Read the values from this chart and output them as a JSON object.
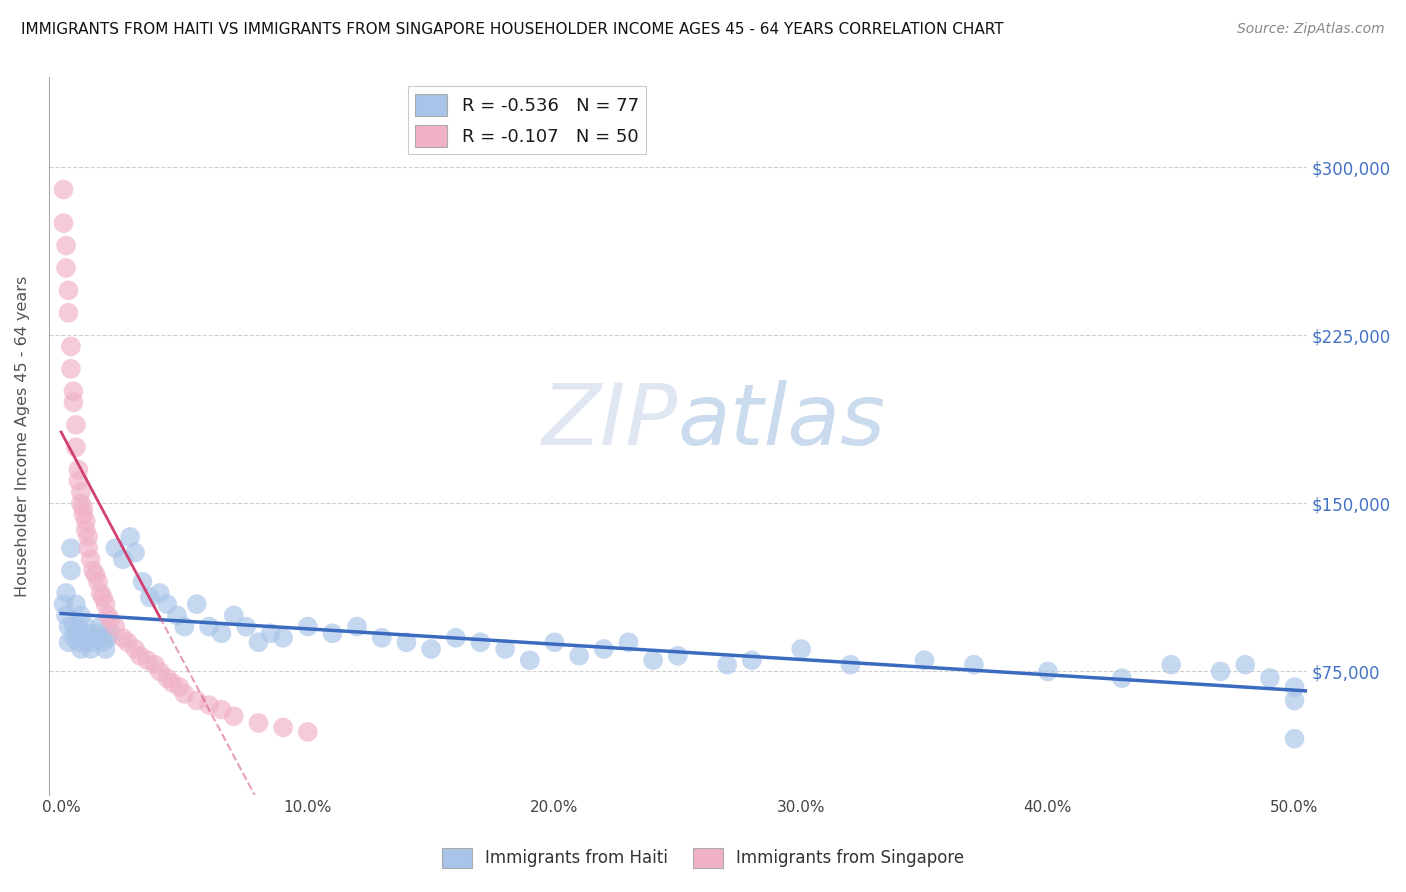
{
  "title": "IMMIGRANTS FROM HAITI VS IMMIGRANTS FROM SINGAPORE HOUSEHOLDER INCOME AGES 45 - 64 YEARS CORRELATION CHART",
  "source": "Source: ZipAtlas.com",
  "ylabel": "Householder Income Ages 45 - 64 years",
  "xlabel_ticks": [
    "0.0%",
    "10.0%",
    "20.0%",
    "30.0%",
    "40.0%",
    "50.0%"
  ],
  "ytick_labels": [
    "$75,000",
    "$150,000",
    "$225,000",
    "$300,000"
  ],
  "ytick_values": [
    75000,
    150000,
    225000,
    300000
  ],
  "xlim": [
    -0.005,
    0.505
  ],
  "ylim": [
    20000,
    340000
  ],
  "haiti_color": "#a8c4e8",
  "singapore_color": "#f0b0c8",
  "haiti_line_color": "#3b6bbf",
  "singapore_line_color": "#d04070",
  "watermark_zip": "ZIP",
  "watermark_atlas": "atlas",
  "legend_haiti_label": "R = -0.536   N = 77",
  "legend_singapore_label": "R = -0.107   N = 50",
  "haiti_x": [
    0.001,
    0.002,
    0.002,
    0.003,
    0.003,
    0.004,
    0.004,
    0.005,
    0.005,
    0.006,
    0.006,
    0.007,
    0.007,
    0.008,
    0.008,
    0.009,
    0.01,
    0.01,
    0.011,
    0.012,
    0.013,
    0.014,
    0.015,
    0.016,
    0.017,
    0.018,
    0.019,
    0.02,
    0.022,
    0.025,
    0.028,
    0.03,
    0.033,
    0.036,
    0.04,
    0.043,
    0.047,
    0.05,
    0.055,
    0.06,
    0.065,
    0.07,
    0.075,
    0.08,
    0.085,
    0.09,
    0.1,
    0.11,
    0.12,
    0.13,
    0.14,
    0.15,
    0.16,
    0.17,
    0.18,
    0.19,
    0.2,
    0.21,
    0.22,
    0.23,
    0.24,
    0.25,
    0.27,
    0.28,
    0.3,
    0.32,
    0.35,
    0.37,
    0.4,
    0.43,
    0.45,
    0.47,
    0.48,
    0.49,
    0.5,
    0.5,
    0.5
  ],
  "haiti_y": [
    105000,
    110000,
    100000,
    95000,
    88000,
    130000,
    120000,
    95000,
    90000,
    105000,
    92000,
    88000,
    95000,
    100000,
    85000,
    90000,
    95000,
    88000,
    92000,
    85000,
    88000,
    90000,
    92000,
    95000,
    88000,
    85000,
    90000,
    92000,
    130000,
    125000,
    135000,
    128000,
    115000,
    108000,
    110000,
    105000,
    100000,
    95000,
    105000,
    95000,
    92000,
    100000,
    95000,
    88000,
    92000,
    90000,
    95000,
    92000,
    95000,
    90000,
    88000,
    85000,
    90000,
    88000,
    85000,
    80000,
    88000,
    82000,
    85000,
    88000,
    80000,
    82000,
    78000,
    80000,
    85000,
    78000,
    80000,
    78000,
    75000,
    72000,
    78000,
    75000,
    78000,
    72000,
    45000,
    68000,
    62000
  ],
  "singapore_x": [
    0.001,
    0.001,
    0.002,
    0.002,
    0.003,
    0.003,
    0.004,
    0.004,
    0.005,
    0.005,
    0.006,
    0.006,
    0.007,
    0.007,
    0.008,
    0.008,
    0.009,
    0.009,
    0.01,
    0.01,
    0.011,
    0.011,
    0.012,
    0.013,
    0.014,
    0.015,
    0.016,
    0.017,
    0.018,
    0.019,
    0.02,
    0.022,
    0.025,
    0.027,
    0.03,
    0.032,
    0.035,
    0.038,
    0.04,
    0.043,
    0.045,
    0.048,
    0.05,
    0.055,
    0.06,
    0.065,
    0.07,
    0.08,
    0.09,
    0.1
  ],
  "singapore_y": [
    290000,
    275000,
    265000,
    255000,
    245000,
    235000,
    220000,
    210000,
    200000,
    195000,
    185000,
    175000,
    165000,
    160000,
    155000,
    150000,
    148000,
    145000,
    142000,
    138000,
    135000,
    130000,
    125000,
    120000,
    118000,
    115000,
    110000,
    108000,
    105000,
    100000,
    98000,
    95000,
    90000,
    88000,
    85000,
    82000,
    80000,
    78000,
    75000,
    72000,
    70000,
    68000,
    65000,
    62000,
    60000,
    58000,
    55000,
    52000,
    50000,
    48000
  ]
}
